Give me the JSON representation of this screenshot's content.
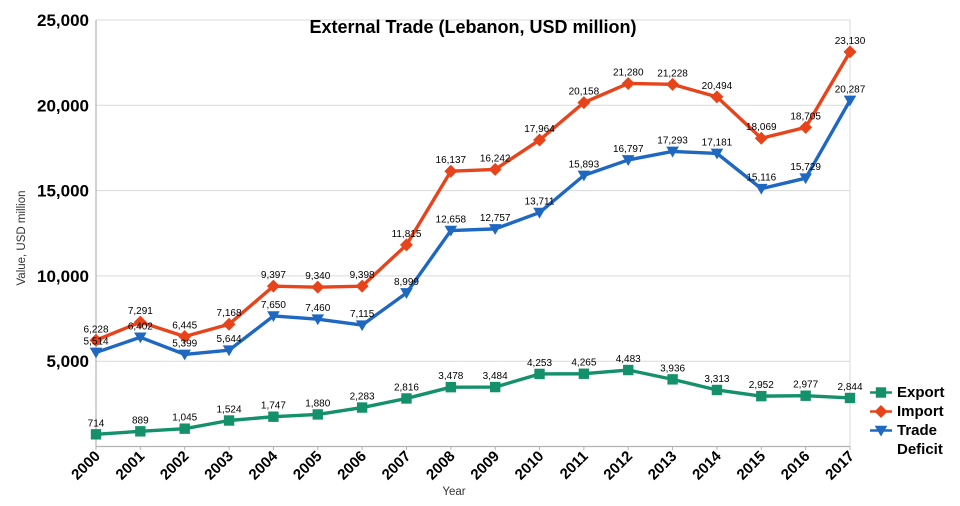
{
  "window": {
    "background": "#ffffff"
  },
  "chart_data": {
    "type": "line",
    "title": "External Trade (Lebanon, USD million)",
    "xlabel": "Year",
    "ylabel": "Value, USD million",
    "ylim": [
      0,
      25000
    ],
    "ytick_step": 5000,
    "ytick_labels": [
      "5,000",
      "10,000",
      "15,000",
      "20,000",
      "25,000"
    ],
    "grid": true,
    "data_labels": true,
    "legend_position": "bottom-right",
    "colors": {
      "gridline": "#d9d9d9",
      "axis": "#b3b3b3",
      "label_text": "#000000"
    },
    "categories": [
      "2000",
      "2001",
      "2002",
      "2003",
      "2004",
      "2005",
      "2006",
      "2007",
      "2008",
      "2009",
      "2010",
      "2011",
      "2012",
      "2013",
      "2014",
      "2015",
      "2016",
      "2017"
    ],
    "series": [
      {
        "name": "Export",
        "color": "#14916A",
        "marker": "square",
        "values": [
          714,
          889,
          1045,
          1524,
          1747,
          1880,
          2283,
          2816,
          3478,
          3484,
          4253,
          4265,
          4483,
          3936,
          3313,
          2952,
          2977,
          2844
        ]
      },
      {
        "name": "Import",
        "color": "#E8441C",
        "marker": "diamond",
        "values": [
          6228,
          7291,
          6445,
          7168,
          9397,
          9340,
          9398,
          11815,
          16137,
          16242,
          17964,
          20158,
          21280,
          21228,
          20494,
          18069,
          18705,
          23130
        ]
      },
      {
        "name": "Trade Deficit",
        "color": "#1E68C2",
        "marker": "triangle-down",
        "values": [
          5514,
          6402,
          5399,
          5644,
          7650,
          7460,
          7115,
          8999,
          12658,
          12757,
          13711,
          15893,
          16797,
          17293,
          17181,
          15116,
          15729,
          20287
        ]
      }
    ]
  }
}
